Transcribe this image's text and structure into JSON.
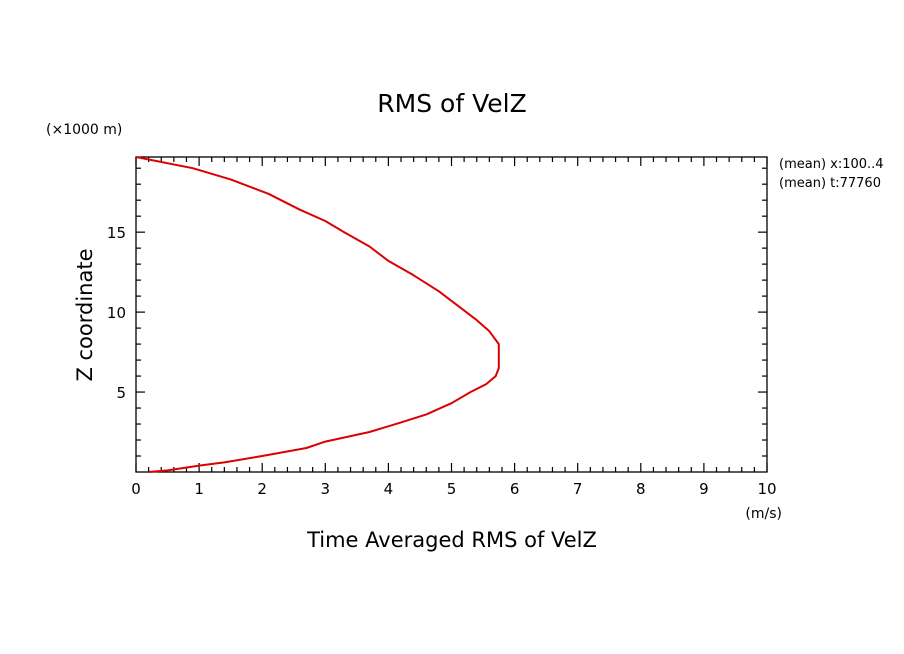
{
  "chart_data": {
    "type": "line",
    "title": "RMS of VelZ",
    "xlabel": "Time Averaged RMS of VelZ",
    "ylabel": "Z coordinate",
    "x_unit": "(m/s)",
    "y_unit": "(×1000 m)",
    "xlim": [
      0,
      10
    ],
    "ylim": [
      0,
      19.7
    ],
    "x_ticks": [
      "0",
      "1",
      "2",
      "3",
      "4",
      "5",
      "6",
      "7",
      "8",
      "9",
      "10"
    ],
    "y_ticks": [
      "5",
      "10",
      "15"
    ],
    "grid": false,
    "line_color": "#dd0000",
    "series": [
      {
        "x": [
          0.2,
          0.5,
          1.0,
          1.4,
          2.0,
          2.7,
          3.0,
          3.7,
          4.2,
          4.6,
          5.0,
          5.3,
          5.55,
          5.7,
          5.75,
          5.75,
          5.75,
          5.6,
          5.4,
          5.1,
          4.8,
          4.4,
          4.0,
          3.7,
          3.3,
          3.0,
          2.6,
          2.1,
          1.5,
          0.9,
          0.0
        ],
        "y": [
          0.0,
          0.1,
          0.4,
          0.6,
          1.0,
          1.5,
          1.9,
          2.5,
          3.1,
          3.6,
          4.3,
          5.0,
          5.5,
          6.0,
          6.5,
          7.5,
          8.0,
          8.8,
          9.5,
          10.4,
          11.3,
          12.3,
          13.2,
          14.1,
          15.0,
          15.7,
          16.4,
          17.4,
          18.3,
          19.0,
          19.7
        ]
      }
    ]
  },
  "annotations": {
    "mean_x": "(mean) x:100..4",
    "mean_t": "(mean) t:77760"
  }
}
